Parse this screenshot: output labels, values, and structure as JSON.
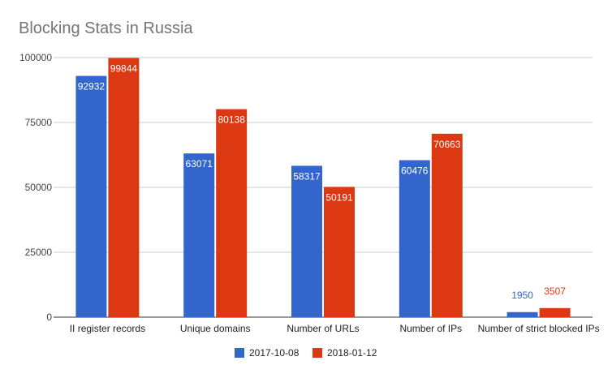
{
  "chart_data": {
    "type": "bar",
    "title": "Blocking Stats in Russia",
    "xlabel": "",
    "ylabel": "",
    "categories": [
      "II register records",
      "Unique domains",
      "Number of URLs",
      "Number of IPs",
      "Number of strict blocked IPs"
    ],
    "series": [
      {
        "name": "2017-10-08",
        "color": "#3366cc",
        "values": [
          92932,
          63071,
          58317,
          60476,
          1950
        ]
      },
      {
        "name": "2018-01-12",
        "color": "#dc3912",
        "values": [
          99844,
          80138,
          50191,
          70663,
          3507
        ]
      }
    ],
    "ylim": [
      0,
      100000
    ],
    "yticks": [
      0,
      25000,
      50000,
      75000,
      100000
    ],
    "ytick_labels": [
      "0",
      "25000",
      "50000",
      "75000",
      "100000"
    ],
    "grid": true,
    "legend_position": "bottom",
    "data_labels": true
  }
}
